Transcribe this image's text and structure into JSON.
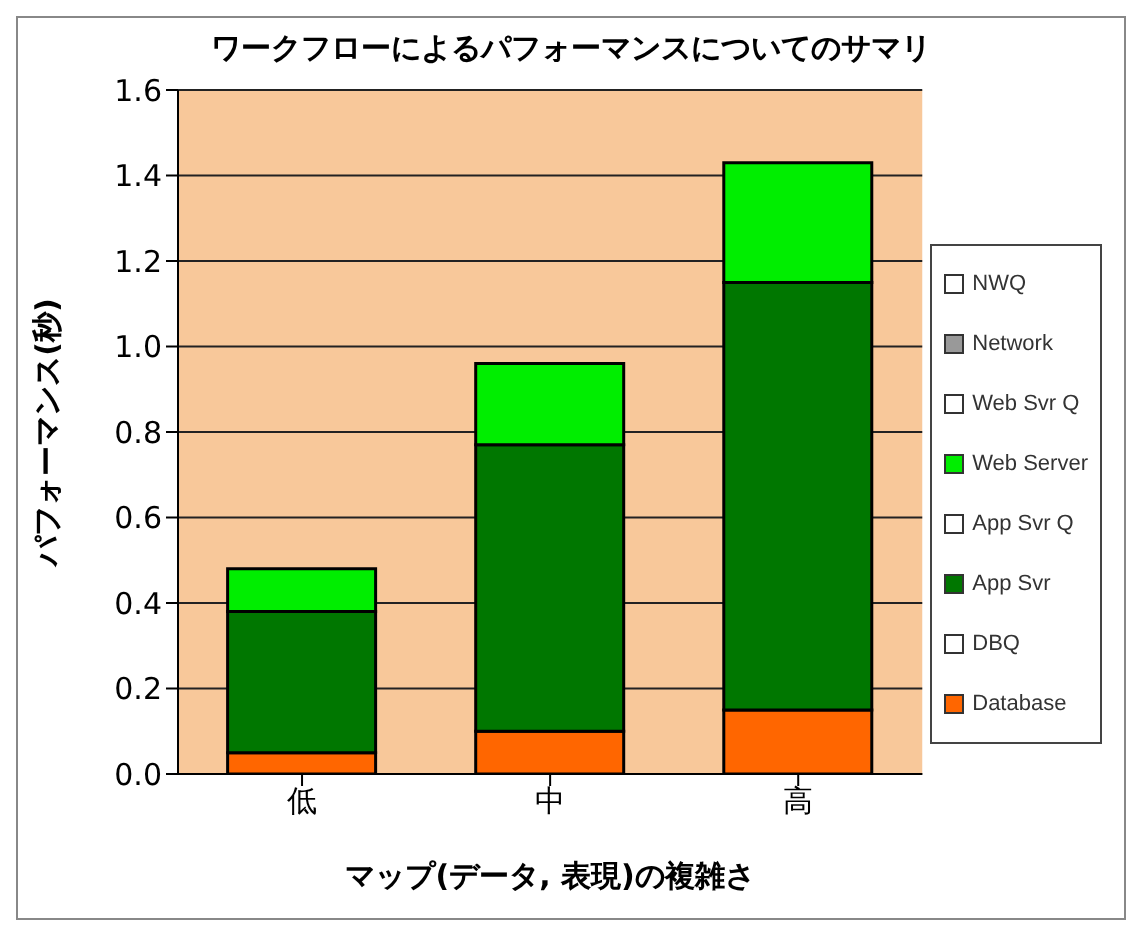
{
  "chart_data": {
    "type": "bar",
    "title": "ワークフローによるパフォーマンスについてのサマリ",
    "xlabel": "マップ(データ, 表現)の複雑さ",
    "ylabel": "パフォーマンス(秒)",
    "categories": [
      "低",
      "中",
      "高"
    ],
    "stacked": true,
    "series": [
      {
        "name": "Database",
        "color": "#ff6600",
        "values": [
          0.05,
          0.1,
          0.15
        ]
      },
      {
        "name": "DBQ",
        "color": "#ffffff",
        "values": [
          0,
          0,
          0
        ]
      },
      {
        "name": "App Svr",
        "color": "#007700",
        "values": [
          0.33,
          0.67,
          1.0
        ]
      },
      {
        "name": "App Svr Q",
        "color": "#ffffff",
        "values": [
          0,
          0,
          0
        ]
      },
      {
        "name": "Web Server",
        "color": "#00ee00",
        "values": [
          0.1,
          0.19,
          0.28
        ]
      },
      {
        "name": "Web Svr Q",
        "color": "#ffffff",
        "values": [
          0,
          0,
          0
        ]
      },
      {
        "name": "Network",
        "color": "#999999",
        "values": [
          0,
          0,
          0
        ]
      },
      {
        "name": "NWQ",
        "color": "#ffffff",
        "values": [
          0,
          0,
          0
        ]
      }
    ],
    "ylim": [
      0,
      1.6
    ],
    "yticks": [
      {
        "value": 0,
        "label": "0.0"
      },
      0.2,
      0.4,
      0.6,
      0.8,
      {
        "value": 1,
        "label": "1.0"
      },
      1.2,
      1.4,
      1.6
    ],
    "grid": "y",
    "legend": "right"
  }
}
